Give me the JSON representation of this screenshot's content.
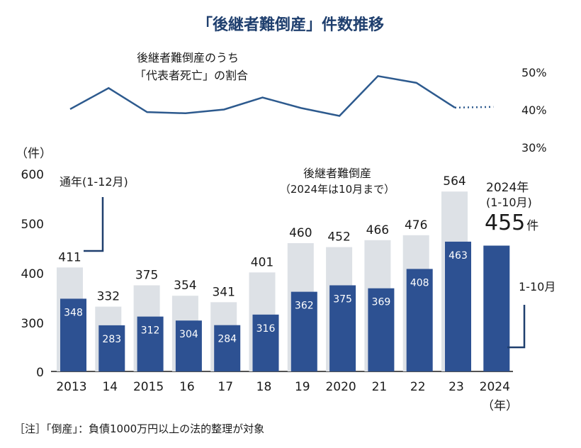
{
  "chart_data": {
    "type": "bar",
    "title": "「後継者難倒産」件数推移",
    "y_unit": "（件）",
    "x_unit": "（年）",
    "ylim": [
      0,
      600
    ],
    "y_ticks": [
      "0",
      "300",
      "400",
      "500",
      "600"
    ],
    "categories": [
      "2013",
      "14",
      "2015",
      "16",
      "17",
      "18",
      "19",
      "2020",
      "21",
      "22",
      "23",
      "2024"
    ],
    "series": [
      {
        "name": "通年（1-12月）",
        "values": [
          411,
          332,
          375,
          354,
          341,
          401,
          460,
          452,
          466,
          476,
          564,
          null
        ]
      },
      {
        "name": "1-10月",
        "values": [
          348,
          283,
          312,
          304,
          284,
          316,
          362,
          375,
          369,
          408,
          463,
          455
        ]
      }
    ],
    "ratio_series": {
      "label_line1": "後継者難倒産のうち",
      "label_line2": "「代表者死亡」の割合",
      "ticks": [
        "50%",
        "40%",
        "30%"
      ],
      "ylim": [
        30,
        50
      ],
      "values": [
        40.2,
        45.8,
        39.4,
        39.1,
        40.1,
        43.3,
        40.5,
        38.4,
        49.0,
        47.2,
        40.6,
        40.8
      ]
    },
    "annotations": {
      "annual": "通年(1-12月)",
      "bar_title": "後継者難倒産",
      "bar_subtitle": "（2024年は10月まで）",
      "year_label": "2024年",
      "period_label": "(1-10月)",
      "big_value": "455",
      "big_unit": "件",
      "jan_oct": "1-10月"
    },
    "note": "［注］「倒産」：負債1000万円以上の法的整理が対象"
  }
}
